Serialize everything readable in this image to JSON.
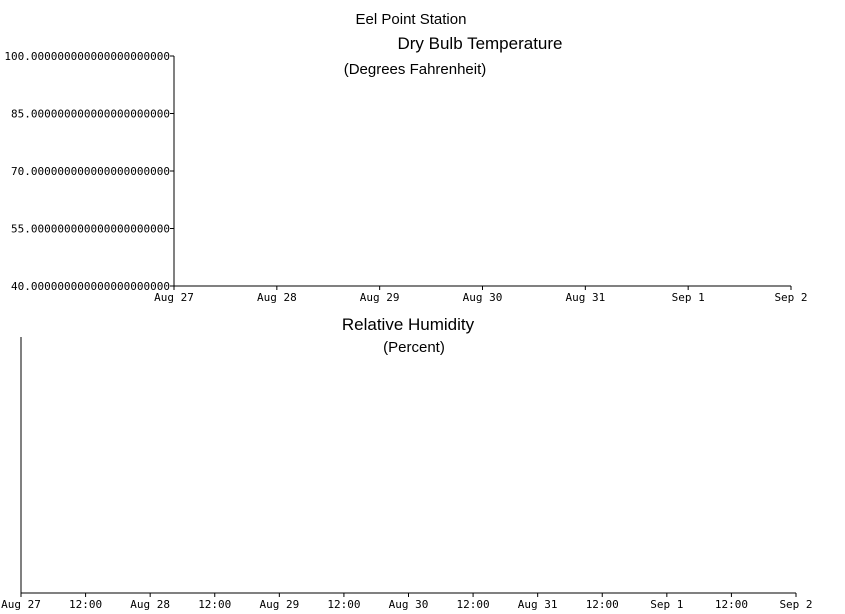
{
  "station_title": "Eel Point Station",
  "chart_data": [
    {
      "type": "line",
      "title": "Dry Bulb Temperature",
      "subtitle": "(Degrees Fahrenheit)",
      "xlabel": "",
      "ylabel": "",
      "ylim": [
        40,
        100
      ],
      "y_ticks": [
        {
          "value": 100,
          "label": "100.000000000000000000000"
        },
        {
          "value": 85,
          "label": "85.000000000000000000000"
        },
        {
          "value": 70,
          "label": "70.000000000000000000000"
        },
        {
          "value": 55,
          "label": "55.000000000000000000000"
        },
        {
          "value": 40,
          "label": "40.000000000000000000000"
        }
      ],
      "x_ticks": [
        "Aug 27",
        "Aug 28",
        "Aug 29",
        "Aug 30",
        "Aug 31",
        "Sep 1",
        "Sep 2"
      ],
      "series": [],
      "grid": false
    },
    {
      "type": "line",
      "title": "Relative Humidity",
      "subtitle": "(Percent)",
      "xlabel": "",
      "ylabel": "",
      "y_ticks": [],
      "x_ticks": [
        "Aug 27",
        "12:00",
        "Aug 28",
        "12:00",
        "Aug 29",
        "12:00",
        "Aug 30",
        "12:00",
        "Aug 31",
        "12:00",
        "Sep 1",
        "12:00",
        "Sep 2"
      ],
      "series": [],
      "grid": false
    }
  ]
}
